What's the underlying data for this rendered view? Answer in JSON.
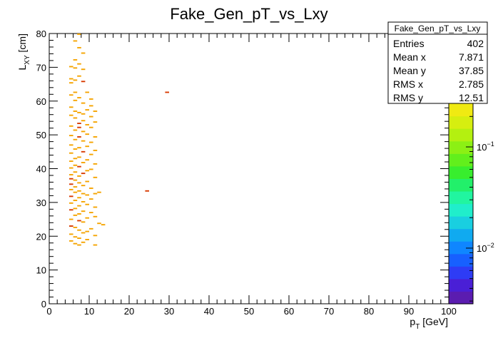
{
  "chart_data": {
    "type": "heatmap",
    "title": "Fake_Gen_pT_vs_Lxy",
    "xlabel": {
      "base": "p",
      "sub": "T",
      "rest": " [GeV]"
    },
    "ylabel": {
      "base": "L",
      "sub": "XY",
      "rest": " [cm]"
    },
    "xlim": [
      0,
      100
    ],
    "ylim": [
      0,
      80
    ],
    "x_ticks": [
      "0",
      "10",
      "20",
      "30",
      "40",
      "50",
      "60",
      "70",
      "80",
      "90",
      "100"
    ],
    "y_ticks": [
      "0",
      "10",
      "20",
      "30",
      "40",
      "50",
      "60",
      "70",
      "80"
    ],
    "z_ticks": [
      {
        "base": "10",
        "exp": "−2",
        "value": 0.01
      },
      {
        "base": "10",
        "exp": "−1",
        "value": 0.1
      }
    ],
    "z_scale": "log",
    "bin_width": {
      "x": 1,
      "y": 0.4
    },
    "stats": {
      "name": "Fake_Gen_pT_vs_Lxy",
      "rows": [
        {
          "label": "Entries",
          "value": "402"
        },
        {
          "label": "Mean x",
          "value": "7.871"
        },
        {
          "label": "Mean y",
          "value": "37.85"
        },
        {
          "label": "RMS x",
          "value": "2.785"
        },
        {
          "label": "RMS y",
          "value": "12.51"
        }
      ]
    },
    "palette": [
      "#5b1cb0",
      "#4a1fd6",
      "#2e3cf5",
      "#1760ff",
      "#0f86ff",
      "#10aaf0",
      "#19cfe0",
      "#20eecb",
      "#21f5a0",
      "#22f06a",
      "#38ee2e",
      "#62ef1c",
      "#8cf014",
      "#b4f010",
      "#d6ee10",
      "#f0ea12"
    ],
    "cell_colors": {
      "low": "#f5a400",
      "high": "#d83a00"
    },
    "cells": [
      [
        7.5,
        79.8,
        0.3
      ],
      [
        6.5,
        77.8,
        0.3
      ],
      [
        7.5,
        75.8,
        0.3
      ],
      [
        8.5,
        74.2,
        0.3
      ],
      [
        6.5,
        72.2,
        0.3
      ],
      [
        7.5,
        71.0,
        0.3
      ],
      [
        5.5,
        70.2,
        0.3
      ],
      [
        6.5,
        69.8,
        0.3
      ],
      [
        8.5,
        69.4,
        0.3
      ],
      [
        7.5,
        67.4,
        0.3
      ],
      [
        5.5,
        66.6,
        0.3
      ],
      [
        6.5,
        66.2,
        0.3
      ],
      [
        8.5,
        65.8,
        0.6
      ],
      [
        5.5,
        65.4,
        0.3
      ],
      [
        6.5,
        62.6,
        0.3
      ],
      [
        9.5,
        62.6,
        0.3
      ],
      [
        29.5,
        62.6,
        0.6
      ],
      [
        5.5,
        61.8,
        0.3
      ],
      [
        7.5,
        61.0,
        0.3
      ],
      [
        10.5,
        60.6,
        0.3
      ],
      [
        6.5,
        60.2,
        0.3
      ],
      [
        8.5,
        59.4,
        0.3
      ],
      [
        10.5,
        58.6,
        0.3
      ],
      [
        5.5,
        58.2,
        0.3
      ],
      [
        9.5,
        57.4,
        0.3
      ],
      [
        6.5,
        57.0,
        0.3
      ],
      [
        11.5,
        57.0,
        0.3
      ],
      [
        7.5,
        56.6,
        0.3
      ],
      [
        8.5,
        56.2,
        0.3
      ],
      [
        5.5,
        55.8,
        0.3
      ],
      [
        10.5,
        55.4,
        0.3
      ],
      [
        6.5,
        55.0,
        0.3
      ],
      [
        8.5,
        54.2,
        0.3
      ],
      [
        11.5,
        53.8,
        0.3
      ],
      [
        7.5,
        53.4,
        0.6
      ],
      [
        9.5,
        53.0,
        0.3
      ],
      [
        5.5,
        52.6,
        0.3
      ],
      [
        7.5,
        52.2,
        0.7
      ],
      [
        10.5,
        52.2,
        0.3
      ],
      [
        6.5,
        51.4,
        0.3
      ],
      [
        8.5,
        51.0,
        0.3
      ],
      [
        9.5,
        50.2,
        0.3
      ],
      [
        5.5,
        49.8,
        0.3
      ],
      [
        7.5,
        49.4,
        0.6
      ],
      [
        11.5,
        49.4,
        0.3
      ],
      [
        6.5,
        48.6,
        0.3
      ],
      [
        8.5,
        48.2,
        0.3
      ],
      [
        10.5,
        47.8,
        0.3
      ],
      [
        5.5,
        47.0,
        0.3
      ],
      [
        9.5,
        46.6,
        0.3
      ],
      [
        7.5,
        46.2,
        0.3
      ],
      [
        6.5,
        45.8,
        0.3
      ],
      [
        11.5,
        45.4,
        0.3
      ],
      [
        8.5,
        45.0,
        0.6
      ],
      [
        5.5,
        44.6,
        0.3
      ],
      [
        10.5,
        44.2,
        0.3
      ],
      [
        7.5,
        43.4,
        0.3
      ],
      [
        6.5,
        43.0,
        0.3
      ],
      [
        9.5,
        42.6,
        0.3
      ],
      [
        5.5,
        42.2,
        0.3
      ],
      [
        8.5,
        41.8,
        0.3
      ],
      [
        11.5,
        41.4,
        0.3
      ],
      [
        6.5,
        41.0,
        0.3
      ],
      [
        7.5,
        40.6,
        0.6
      ],
      [
        5.5,
        40.2,
        0.3
      ],
      [
        10.5,
        39.8,
        0.3
      ],
      [
        9.5,
        39.4,
        0.3
      ],
      [
        6.5,
        39.0,
        0.3
      ],
      [
        8.5,
        38.6,
        0.6
      ],
      [
        5.5,
        38.2,
        0.3
      ],
      [
        7.5,
        37.8,
        0.3
      ],
      [
        11.5,
        37.4,
        0.3
      ],
      [
        5.5,
        37.0,
        0.7
      ],
      [
        6.5,
        36.6,
        0.3
      ],
      [
        9.5,
        36.2,
        0.3
      ],
      [
        7.5,
        35.8,
        0.3
      ],
      [
        5.5,
        35.4,
        0.6
      ],
      [
        8.5,
        35.0,
        0.3
      ],
      [
        6.5,
        34.6,
        0.3
      ],
      [
        10.5,
        34.2,
        0.3
      ],
      [
        5.5,
        33.8,
        0.3
      ],
      [
        7.5,
        33.4,
        0.3
      ],
      [
        12.5,
        33.0,
        0.3
      ],
      [
        24.5,
        33.4,
        0.6
      ],
      [
        6.5,
        33.0,
        0.3
      ],
      [
        8.5,
        32.6,
        0.3
      ],
      [
        11.5,
        32.6,
        0.3
      ],
      [
        9.5,
        32.2,
        0.3
      ],
      [
        5.5,
        31.8,
        0.6
      ],
      [
        7.5,
        31.4,
        0.3
      ],
      [
        10.5,
        31.0,
        0.3
      ],
      [
        6.5,
        30.6,
        0.3
      ],
      [
        8.5,
        30.2,
        0.3
      ],
      [
        5.5,
        29.8,
        0.3
      ],
      [
        9.5,
        29.4,
        0.3
      ],
      [
        7.5,
        29.0,
        0.3
      ],
      [
        11.5,
        28.6,
        0.3
      ],
      [
        6.5,
        28.2,
        0.3
      ],
      [
        5.5,
        27.8,
        0.6
      ],
      [
        8.5,
        27.4,
        0.3
      ],
      [
        10.5,
        27.0,
        0.3
      ],
      [
        7.5,
        26.6,
        0.3
      ],
      [
        6.5,
        26.2,
        0.3
      ],
      [
        11.5,
        25.8,
        0.3
      ],
      [
        9.5,
        25.4,
        0.3
      ],
      [
        5.5,
        25.0,
        0.3
      ],
      [
        7.5,
        24.6,
        0.6
      ],
      [
        8.5,
        24.2,
        0.3
      ],
      [
        12.5,
        23.8,
        0.3
      ],
      [
        13.5,
        23.4,
        0.3
      ],
      [
        5.5,
        23.0,
        0.6
      ],
      [
        6.5,
        22.6,
        0.3
      ],
      [
        10.5,
        22.2,
        0.3
      ],
      [
        7.5,
        21.8,
        0.3
      ],
      [
        9.5,
        21.4,
        0.3
      ],
      [
        8.5,
        21.0,
        0.3
      ],
      [
        5.5,
        20.6,
        0.3
      ],
      [
        11.5,
        20.2,
        0.3
      ],
      [
        6.5,
        19.8,
        0.3
      ],
      [
        7.5,
        19.4,
        0.3
      ],
      [
        9.5,
        19.0,
        0.3
      ],
      [
        5.5,
        18.6,
        0.3
      ],
      [
        8.5,
        18.2,
        0.3
      ],
      [
        6.5,
        17.8,
        0.3
      ],
      [
        7.5,
        17.4,
        0.3
      ],
      [
        11.5,
        17.4,
        0.3
      ]
    ]
  }
}
